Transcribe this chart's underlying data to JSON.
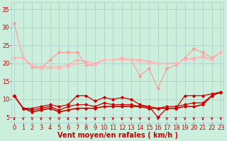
{
  "x": [
    0,
    1,
    2,
    3,
    4,
    5,
    6,
    7,
    8,
    9,
    10,
    11,
    12,
    13,
    14,
    15,
    16,
    17,
    18,
    19,
    20,
    21,
    22,
    23
  ],
  "series": [
    {
      "name": "pink_top_volatile",
      "color": "#ff9999",
      "lw": 0.8,
      "marker": "D",
      "markersize": 1.8,
      "y": [
        31,
        21.5,
        19,
        18.5,
        21,
        23,
        23,
        23,
        19.5,
        19.5,
        21,
        21,
        21,
        21,
        16.5,
        18.5,
        13,
        18.5,
        19.5,
        21.5,
        24,
        23,
        21.5,
        23
      ]
    },
    {
      "name": "pink_mid1",
      "color": "#ffaaaa",
      "lw": 0.8,
      "marker": "D",
      "markersize": 1.8,
      "y": [
        21.5,
        21.5,
        19.5,
        19,
        19,
        19,
        19.5,
        21,
        20.5,
        20,
        21,
        21,
        21.5,
        21,
        21,
        20.5,
        20,
        20,
        20,
        21,
        21.5,
        22,
        21,
        23
      ]
    },
    {
      "name": "pink_mid2",
      "color": "#ffbbbb",
      "lw": 0.8,
      "marker": "D",
      "markersize": 1.8,
      "y": [
        21.5,
        21.5,
        19.5,
        18.5,
        18.5,
        18.5,
        19,
        20,
        20,
        19.5,
        21,
        21,
        21,
        21,
        20.5,
        20,
        20,
        20,
        20,
        21,
        21,
        21.5,
        21,
        23
      ]
    },
    {
      "name": "dark_red_top",
      "color": "#cc0000",
      "lw": 0.9,
      "marker": "D",
      "markersize": 1.8,
      "y": [
        11,
        7.5,
        7.5,
        8,
        8.5,
        8,
        8.5,
        11,
        11,
        9.5,
        10.5,
        10,
        10.5,
        10,
        8.5,
        8,
        5,
        7.5,
        7.5,
        11,
        11,
        11,
        11.5,
        12
      ]
    },
    {
      "name": "dark_red_mid",
      "color": "#cc0000",
      "lw": 0.9,
      "marker": "D",
      "markersize": 1.8,
      "y": [
        11,
        7.5,
        7,
        7.5,
        8,
        7,
        8,
        8.5,
        8.5,
        8,
        9,
        8.5,
        8.5,
        8.5,
        8,
        8,
        7.5,
        8,
        8,
        8.5,
        9,
        9,
        11,
        12
      ]
    },
    {
      "name": "dark_red_flat",
      "color": "#cc0000",
      "lw": 1.2,
      "marker": "D",
      "markersize": 1.8,
      "y": [
        11,
        7.5,
        6.5,
        7,
        7.5,
        6.5,
        7,
        7.5,
        7.5,
        7.5,
        8,
        8,
        8,
        8,
        8,
        7.5,
        7.5,
        7.5,
        7.5,
        8,
        8,
        8.5,
        11,
        12
      ]
    }
  ],
  "xlabel": "Vent moyen/en rafales ( km/h )",
  "ylabel_ticks": [
    5,
    10,
    15,
    20,
    25,
    30,
    35
  ],
  "xlim": [
    -0.3,
    23.3
  ],
  "ylim": [
    3.5,
    37
  ],
  "bg_color": "#cceedd",
  "grid_color": "#aacccc",
  "tick_color": "#cc0000",
  "xlabel_color": "#cc0000",
  "xlabel_fontsize": 7,
  "tick_fontsize": 6,
  "arrow_color": "#cc0000"
}
